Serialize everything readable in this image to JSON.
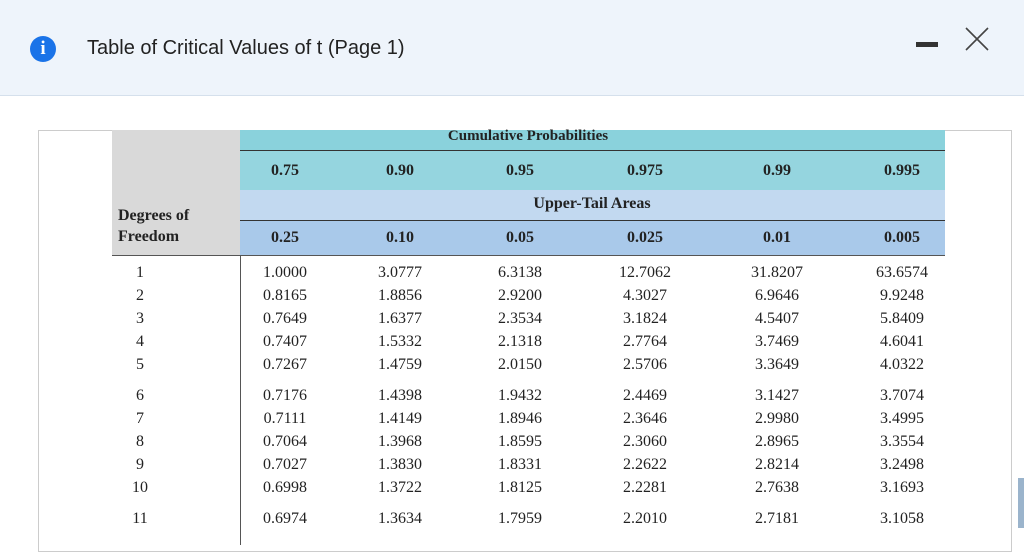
{
  "header": {
    "title": "Table of Critical Values of t (Page 1)"
  },
  "table": {
    "group_title": "Cumulative Probabilities",
    "tail_title": "Upper-Tail Areas",
    "row_header": "Degrees of Freedom",
    "cumulative": [
      "0.75",
      "0.90",
      "0.95",
      "0.975",
      "0.99",
      "0.995"
    ],
    "tail_areas": [
      "0.25",
      "0.10",
      "0.05",
      "0.025",
      "0.01",
      "0.005"
    ],
    "rows": [
      [
        "1",
        "1.0000",
        "3.0777",
        "6.3138",
        "12.7062",
        "31.8207",
        "63.6574"
      ],
      [
        "2",
        "0.8165",
        "1.8856",
        "2.9200",
        "4.3027",
        "6.9646",
        "9.9248"
      ],
      [
        "3",
        "0.7649",
        "1.6377",
        "2.3534",
        "3.1824",
        "4.5407",
        "5.8409"
      ],
      [
        "4",
        "0.7407",
        "1.5332",
        "2.1318",
        "2.7764",
        "3.7469",
        "4.6041"
      ],
      [
        "5",
        "0.7267",
        "1.4759",
        "2.0150",
        "2.5706",
        "3.3649",
        "4.0322"
      ],
      [
        "6",
        "0.7176",
        "1.4398",
        "1.9432",
        "2.4469",
        "3.1427",
        "3.7074"
      ],
      [
        "7",
        "0.7111",
        "1.4149",
        "1.8946",
        "2.3646",
        "2.9980",
        "3.4995"
      ],
      [
        "8",
        "0.7064",
        "1.3968",
        "1.8595",
        "2.3060",
        "2.8965",
        "3.3554"
      ],
      [
        "9",
        "0.7027",
        "1.3830",
        "1.8331",
        "2.2622",
        "2.8214",
        "3.2498"
      ],
      [
        "10",
        "0.6998",
        "1.3722",
        "1.8125",
        "2.2281",
        "2.7638",
        "3.1693"
      ],
      [
        "11",
        "0.6974",
        "1.3634",
        "1.7959",
        "2.2010",
        "2.7181",
        "3.1058"
      ]
    ]
  }
}
